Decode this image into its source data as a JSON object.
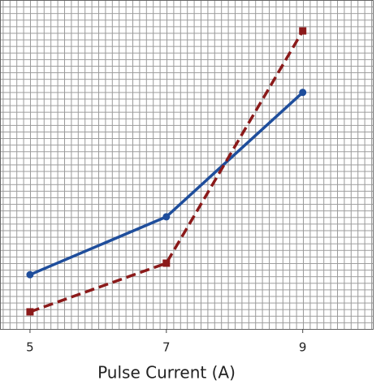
{
  "chart_data": {
    "type": "line",
    "x_label": "Pulse Current (A)",
    "x": [
      5,
      7,
      9
    ],
    "xlim": [
      4.56,
      10.04
    ],
    "xticks": [
      5,
      7,
      9
    ],
    "ylim": [
      0,
      100
    ],
    "grid": true,
    "series": [
      {
        "color": "#1f4e9c",
        "dash": false,
        "marker": "circle",
        "values": [
          16.5,
          34.1,
          71.9
        ]
      },
      {
        "color": "#8b1a1a",
        "dash": true,
        "marker": "square",
        "values": [
          5.2,
          20.0,
          90.6
        ]
      }
    ]
  }
}
